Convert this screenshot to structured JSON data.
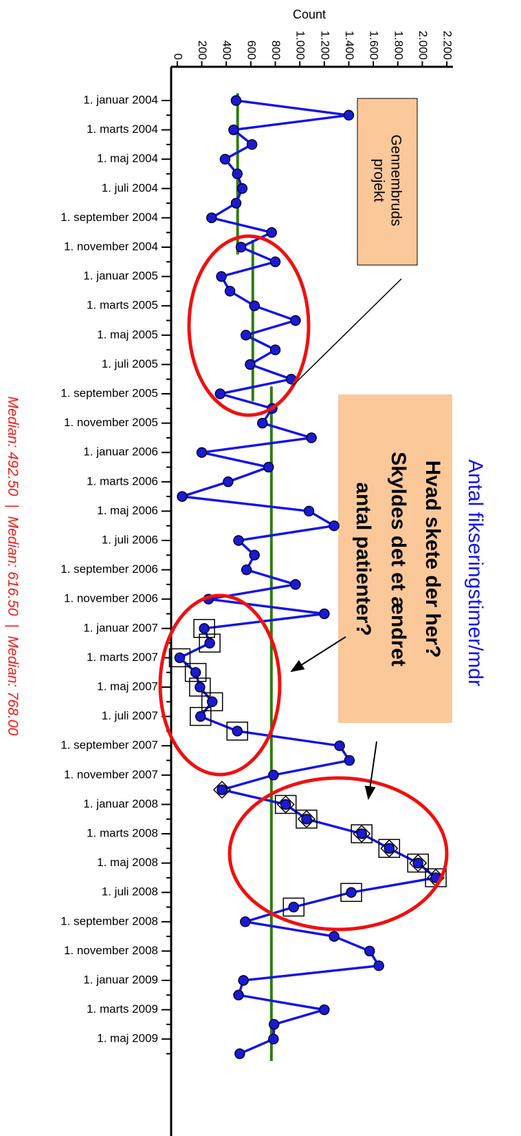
{
  "chart_data": {
    "type": "line",
    "title": "Antal fikseringstimer/mdr",
    "value_axis_label": "Count",
    "categories": [
      "1. januar 2004",
      null,
      "1. marts 2004",
      null,
      "1. maj 2004",
      null,
      "1. juli 2004",
      null,
      "1. september 2004",
      null,
      "1. november 2004",
      null,
      "1. januar 2005",
      null,
      "1. marts 2005",
      null,
      "1. maj 2005",
      null,
      "1. juli 2005",
      null,
      "1. september 2005",
      null,
      "1. november 2005",
      null,
      "1. januar 2006",
      null,
      "1. marts 2006",
      null,
      "1. maj 2006",
      null,
      "1. juli 2006",
      null,
      "1. september 2006",
      null,
      "1. november 2006",
      null,
      "1. januar 2007",
      null,
      "1. marts 2007",
      null,
      "1. maj 2007",
      null,
      "1. juli 2007",
      null,
      "1. september 2007",
      null,
      "1. november 2007",
      null,
      "1. januar 2008",
      null,
      "1. marts 2008",
      null,
      "1. maj 2008",
      null,
      "1. juli 2008",
      null,
      "1. september 2008",
      null,
      "1. november 2008",
      null,
      "1. januar 2009",
      null,
      "1. marts 2009",
      null,
      "1. maj 2009",
      null
    ],
    "series": [
      {
        "name": "Antal fikseringstimer/mdr",
        "color": "#1414e6",
        "values": [
          480,
          1400,
          460,
          610,
          390,
          490,
          530,
          480,
          280,
          770,
          520,
          800,
          360,
          430,
          630,
          965,
          560,
          800,
          595,
          930,
          350,
          775,
          695,
          1095,
          200,
          745,
          415,
          40,
          1075,
          1280,
          500,
          630,
          565,
          965,
          255,
          1200,
          220,
          265,
          20,
          150,
          185,
          285,
          190,
          490,
          1325,
          1405,
          785,
          365,
          885,
          1055,
          1505,
          1730,
          1965,
          2110,
          1420,
          950,
          555,
          1280,
          1570,
          1645,
          540,
          500,
          1200,
          790,
          785,
          510
        ]
      }
    ],
    "square_points": [
      36,
      37,
      38,
      39,
      40,
      41,
      42,
      43,
      48,
      49,
      50,
      51,
      52,
      53,
      54,
      55
    ],
    "diamond_points": [
      47,
      48,
      49,
      50,
      51,
      52,
      53
    ],
    "medians": [
      {
        "value": 492.5,
        "label": "Median: 492.50",
        "span": [
          0,
          10
        ]
      },
      {
        "value": 616.5,
        "label": "Median: 616.50",
        "span": [
          10,
          20
        ]
      },
      {
        "value": 768,
        "label": "Median: 768.00",
        "span": [
          20,
          65
        ]
      }
    ],
    "median_separator": "|",
    "median_color": "#2e7d0e",
    "vlim": [
      -50,
      2250
    ],
    "vticks": [
      0,
      200,
      400,
      600,
      800,
      {
        "value": 1000,
        "label": "1.000"
      },
      {
        "value": 1200,
        "label": "1.200"
      },
      {
        "value": 1400,
        "label": "1.400"
      },
      {
        "value": 1600,
        "label": "1.600"
      },
      {
        "value": 1800,
        "label": "1.800"
      },
      {
        "value": 2000,
        "label": "2.000"
      },
      {
        "value": 2200,
        "label": "2.200"
      }
    ],
    "annotations": [
      {
        "lines": [
          "Gennembruds",
          "projekt"
        ]
      },
      {
        "lines": [
          "Hvad skete der her?",
          "Skyldes det et ændret",
          "antal patienter?"
        ]
      }
    ]
  }
}
